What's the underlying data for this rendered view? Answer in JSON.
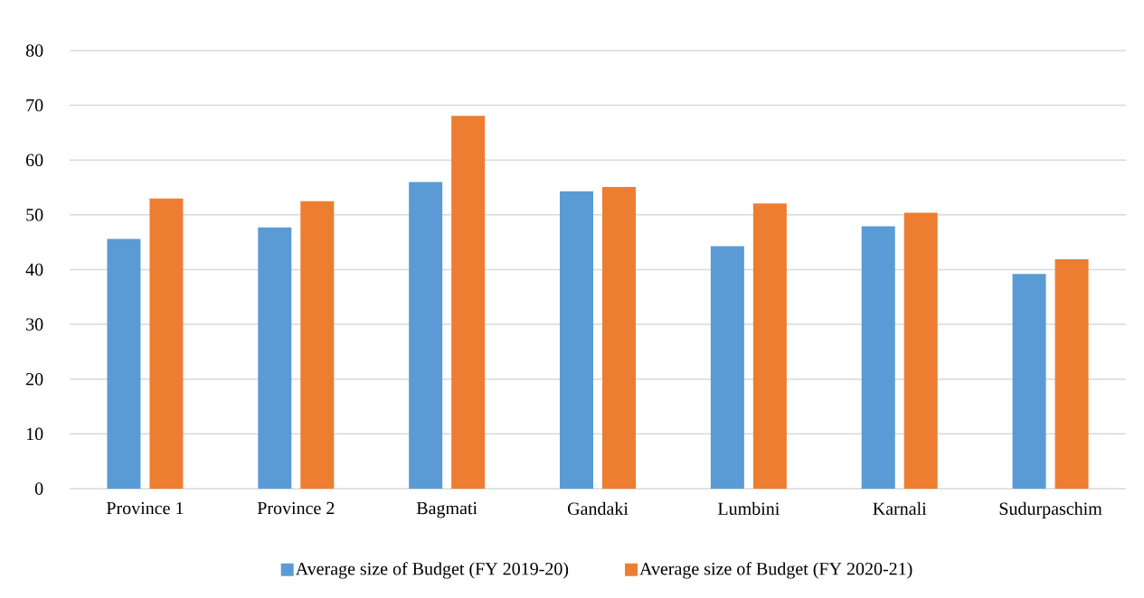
{
  "chart_data": {
    "type": "bar",
    "categories": [
      "Province 1",
      "Province 2",
      "Bagmati",
      "Gandaki",
      "Lumbini",
      "Karnali",
      "Sudurpaschim"
    ],
    "series": [
      {
        "name": "Average size of Budget (FY 2019-20)",
        "color": "#5b9bd5",
        "values": [
          45.6,
          47.7,
          56.0,
          54.3,
          44.3,
          47.9,
          39.2
        ]
      },
      {
        "name": "Average size of Budget (FY 2020-21)",
        "color": "#ed7d31",
        "values": [
          53.0,
          52.5,
          68.1,
          55.1,
          52.1,
          50.4,
          41.9
        ]
      }
    ],
    "ylim": [
      0,
      80
    ],
    "yticks": [
      0,
      10,
      20,
      30,
      40,
      50,
      60,
      70,
      80
    ],
    "grid": "y",
    "legend": "bottom"
  }
}
